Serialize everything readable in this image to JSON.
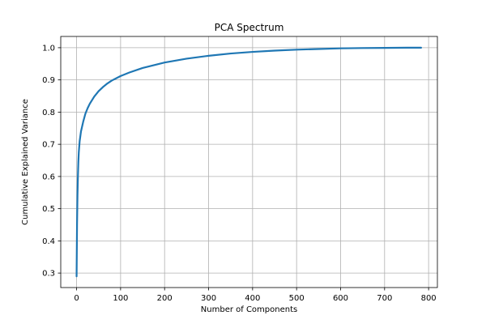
{
  "chart_data": {
    "type": "line",
    "title": "PCA Spectrum",
    "xlabel": "Number of Components",
    "ylabel": "Cumulative Explained Variance",
    "xlim": [
      -36,
      820
    ],
    "ylim": [
      0.255,
      1.035
    ],
    "xticks": [
      0,
      100,
      200,
      300,
      400,
      500,
      600,
      700,
      800
    ],
    "yticks": [
      0.3,
      0.4,
      0.5,
      0.6,
      0.7,
      0.8,
      0.9,
      1.0
    ],
    "xtick_labels": [
      "0",
      "100",
      "200",
      "300",
      "400",
      "500",
      "600",
      "700",
      "800"
    ],
    "ytick_labels": [
      "0.3",
      "0.4",
      "0.5",
      "0.6",
      "0.7",
      "0.8",
      "0.9",
      "1.0"
    ],
    "grid": true,
    "legend": false,
    "series": [
      {
        "color": "#1f77b4",
        "x": [
          0,
          1,
          2,
          3,
          4,
          5,
          7,
          10,
          15,
          20,
          25,
          30,
          40,
          50,
          60,
          70,
          80,
          100,
          120,
          150,
          200,
          250,
          300,
          350,
          400,
          450,
          500,
          550,
          600,
          650,
          700,
          750,
          783
        ],
        "y": [
          0.29,
          0.45,
          0.54,
          0.6,
          0.645,
          0.675,
          0.71,
          0.74,
          0.77,
          0.795,
          0.812,
          0.826,
          0.848,
          0.865,
          0.878,
          0.889,
          0.898,
          0.912,
          0.923,
          0.937,
          0.954,
          0.966,
          0.975,
          0.982,
          0.987,
          0.991,
          0.994,
          0.996,
          0.998,
          0.999,
          0.9995,
          1.0,
          1.0
        ]
      }
    ]
  }
}
